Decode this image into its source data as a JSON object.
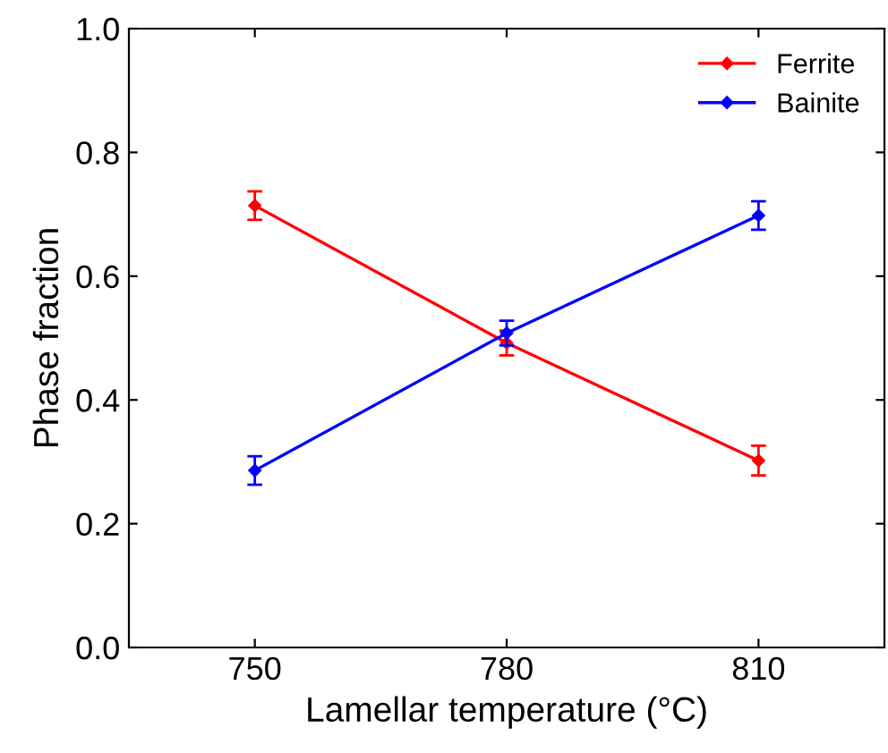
{
  "chart_data": {
    "type": "line",
    "xlabel": "Lamellar temperature (°C)",
    "ylabel": "Phase fraction",
    "x": [
      750,
      780,
      810
    ],
    "series": [
      {
        "name": "Ferrite",
        "color": "#ff0000",
        "values": [
          0.714,
          0.492,
          0.302
        ],
        "errors": [
          0.023,
          0.02,
          0.024
        ]
      },
      {
        "name": "Bainite",
        "color": "#0000ff",
        "values": [
          0.286,
          0.508,
          0.698
        ],
        "errors": [
          0.023,
          0.02,
          0.023
        ]
      }
    ],
    "xlim": [
      735,
      825
    ],
    "xticks": [
      750,
      780,
      810
    ],
    "ylim": [
      0,
      1.0
    ],
    "yticks": [
      {
        "value": 0,
        "label": "0.0"
      },
      0.2,
      0.4,
      0.6,
      0.8,
      {
        "value": 1.0,
        "label": "1.0"
      }
    ],
    "marker": "diamond",
    "line_style": "solid",
    "legend": "top right",
    "grid": false
  }
}
